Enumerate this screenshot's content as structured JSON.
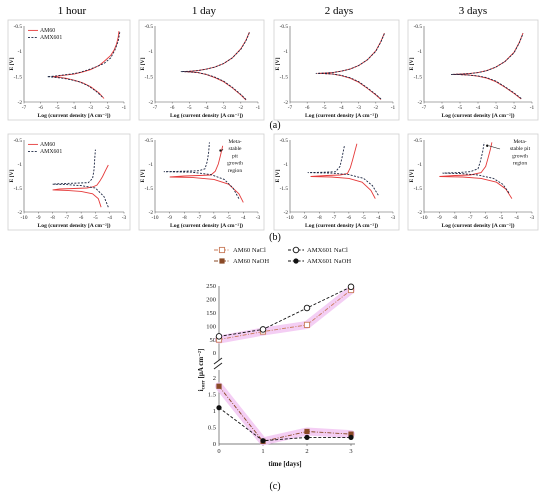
{
  "colors": {
    "am60": "#e53a3a",
    "amx601": "#1a2440",
    "am60_nacl": "#c87b5a",
    "am60_naoh": "#8a4a26",
    "amx601_nacl": "#111111",
    "amx601_naoh": "#111111",
    "panel_border": "#cfcfcf",
    "highlight": "#f2c6f2"
  },
  "figure": {
    "column_titles": [
      "1 hour",
      "1 day",
      "2 days",
      "3 days"
    ],
    "caption_a": "(a)",
    "caption_b": "(b)",
    "caption_c": "(c)"
  },
  "chart_data": [
    {
      "panel": "a-1",
      "type": "line",
      "xlabel": "Log (current density [A cm⁻²])",
      "ylabel": "E [V]",
      "xlim": [
        -7,
        -1
      ],
      "ylim": [
        -2,
        -0.5
      ],
      "xticks": [
        "-7",
        "-6",
        "-5",
        "-4",
        "-3",
        "-2",
        "-1"
      ],
      "yticks": [
        "-0.5",
        "-1",
        "-1.5",
        "-2"
      ],
      "legend": [
        "AM60",
        "AMX601"
      ],
      "series": [
        {
          "name": "AM60",
          "style": "solid",
          "x": [
            -2.2,
            -2.5,
            -3,
            -3.5,
            -4,
            -4.5,
            -5,
            -5.3,
            -5,
            -4.5,
            -4,
            -3.5,
            -3,
            -2.5,
            -2.2,
            -1.8,
            -1.6,
            -1.45,
            -1.35,
            -1.3
          ],
          "y": [
            -1.93,
            -1.82,
            -1.7,
            -1.62,
            -1.57,
            -1.53,
            -1.51,
            -1.5,
            -1.49,
            -1.47,
            -1.45,
            -1.41,
            -1.36,
            -1.28,
            -1.2,
            -1.08,
            -0.98,
            -0.86,
            -0.72,
            -0.6
          ]
        },
        {
          "name": "AMX601",
          "style": "dash",
          "x": [
            -2.3,
            -2.7,
            -3.2,
            -3.7,
            -4.2,
            -4.7,
            -5.2,
            -5.6,
            -5.2,
            -4.7,
            -4.2,
            -3.7,
            -3.2,
            -2.7,
            -2.2,
            -1.8,
            -1.55,
            -1.35,
            -1.25
          ],
          "y": [
            -1.9,
            -1.78,
            -1.67,
            -1.6,
            -1.56,
            -1.53,
            -1.51,
            -1.5,
            -1.49,
            -1.47,
            -1.45,
            -1.42,
            -1.37,
            -1.31,
            -1.24,
            -1.13,
            -0.98,
            -0.8,
            -0.62
          ]
        }
      ]
    },
    {
      "panel": "a-2",
      "type": "line",
      "xlabel": "Log (current density [A cm⁻²])",
      "ylabel": "E [V]",
      "xlim": [
        -7,
        -1
      ],
      "ylim": [
        -2,
        -0.5
      ],
      "xticks": [
        "-7",
        "-6",
        "-5",
        "-4",
        "-3",
        "-2",
        "-1"
      ],
      "yticks": [
        "-0.5",
        "-1",
        "-1.5",
        "-2"
      ],
      "series": [
        {
          "name": "AM60",
          "style": "solid",
          "x": [
            -1.7,
            -2,
            -2.5,
            -3,
            -3.5,
            -4,
            -4.5,
            -5,
            -5.3,
            -5,
            -4.5,
            -4,
            -3.5,
            -3,
            -2.5,
            -2,
            -1.7,
            -1.5
          ],
          "y": [
            -1.96,
            -1.86,
            -1.72,
            -1.6,
            -1.52,
            -1.46,
            -1.42,
            -1.405,
            -1.4,
            -1.395,
            -1.38,
            -1.35,
            -1.31,
            -1.24,
            -1.13,
            -0.95,
            -0.78,
            -0.62
          ]
        },
        {
          "name": "AMX601",
          "style": "dash",
          "x": [
            -1.7,
            -2,
            -2.5,
            -3,
            -3.5,
            -4,
            -4.5,
            -5,
            -5.5,
            -5,
            -4.5,
            -4,
            -3.5,
            -3,
            -2.5,
            -2,
            -1.7,
            -1.5
          ],
          "y": [
            -1.95,
            -1.85,
            -1.71,
            -1.59,
            -1.51,
            -1.455,
            -1.42,
            -1.405,
            -1.4,
            -1.395,
            -1.38,
            -1.35,
            -1.31,
            -1.24,
            -1.13,
            -0.96,
            -0.79,
            -0.63
          ]
        }
      ]
    },
    {
      "panel": "a-3",
      "type": "line",
      "xlabel": "Log (current density [A cm⁻²])",
      "ylabel": "E [V]",
      "xlim": [
        -7,
        -1
      ],
      "ylim": [
        -2,
        -0.5
      ],
      "xticks": [
        "-7",
        "-6",
        "-5",
        "-4",
        "-3",
        "-2",
        "-1"
      ],
      "yticks": [
        "-0.5",
        "-1",
        "-1.5",
        "-2"
      ],
      "series": [
        {
          "name": "AM60",
          "style": "solid",
          "x": [
            -1.7,
            -2,
            -2.5,
            -3,
            -3.5,
            -4,
            -4.5,
            -5,
            -5.4,
            -5,
            -4.5,
            -4,
            -3.5,
            -3,
            -2.5,
            -2,
            -1.7,
            -1.5
          ],
          "y": [
            -1.95,
            -1.86,
            -1.73,
            -1.61,
            -1.53,
            -1.48,
            -1.45,
            -1.44,
            -1.435,
            -1.43,
            -1.42,
            -1.39,
            -1.35,
            -1.28,
            -1.17,
            -0.99,
            -0.8,
            -0.64
          ]
        },
        {
          "name": "AMX601",
          "style": "dash",
          "x": [
            -1.7,
            -2,
            -2.5,
            -3,
            -3.5,
            -4,
            -4.5,
            -5,
            -5.5,
            -5,
            -4.5,
            -4,
            -3.5,
            -3,
            -2.5,
            -2,
            -1.7,
            -1.5
          ],
          "y": [
            -1.94,
            -1.85,
            -1.72,
            -1.6,
            -1.52,
            -1.475,
            -1.45,
            -1.44,
            -1.435,
            -1.43,
            -1.42,
            -1.39,
            -1.35,
            -1.28,
            -1.17,
            -1.0,
            -0.81,
            -0.65
          ]
        }
      ]
    },
    {
      "panel": "a-4",
      "type": "line",
      "xlabel": "Log (current density [A cm⁻²])",
      "ylabel": "E [V]",
      "xlim": [
        -7,
        -1
      ],
      "ylim": [
        -2,
        -0.5
      ],
      "xticks": [
        "-7",
        "-6",
        "-5",
        "-4",
        "-3",
        "-2",
        "-1"
      ],
      "yticks": [
        "-0.5",
        "-1",
        "-1.5",
        "-2"
      ],
      "series": [
        {
          "name": "AM60",
          "style": "solid",
          "x": [
            -1.6,
            -2,
            -2.5,
            -3,
            -3.5,
            -4,
            -4.5,
            -5,
            -5.4,
            -5,
            -4.5,
            -4,
            -3.5,
            -3,
            -2.5,
            -2,
            -1.7,
            -1.5
          ],
          "y": [
            -1.94,
            -1.83,
            -1.71,
            -1.6,
            -1.53,
            -1.49,
            -1.47,
            -1.46,
            -1.455,
            -1.45,
            -1.44,
            -1.42,
            -1.38,
            -1.31,
            -1.2,
            -1.02,
            -0.82,
            -0.64
          ]
        },
        {
          "name": "AMX601",
          "style": "dash",
          "x": [
            -1.6,
            -2,
            -2.5,
            -3,
            -3.5,
            -4,
            -4.5,
            -5,
            -5.5,
            -5,
            -4.5,
            -4,
            -3.5,
            -3,
            -2.5,
            -2,
            -1.7,
            -1.5
          ],
          "y": [
            -1.93,
            -1.82,
            -1.7,
            -1.59,
            -1.52,
            -1.485,
            -1.47,
            -1.46,
            -1.455,
            -1.45,
            -1.44,
            -1.42,
            -1.38,
            -1.31,
            -1.2,
            -1.03,
            -0.83,
            -0.65
          ]
        }
      ]
    },
    {
      "panel": "b-1",
      "type": "line",
      "xlabel": "Log (current density [A cm⁻²])",
      "ylabel": "E [V]",
      "xlim": [
        -10,
        -3
      ],
      "ylim": [
        -2,
        -0.5
      ],
      "xticks": [
        "-10",
        "-9",
        "-8",
        "-7",
        "-6",
        "-5",
        "-4",
        "-3"
      ],
      "yticks": [
        "-0.5",
        "-1",
        "-1.5",
        "-2"
      ],
      "legend": [
        "AM60",
        "AMX601"
      ],
      "series": [
        {
          "name": "AM60",
          "style": "solid",
          "x": [
            -4.6,
            -4.8,
            -5.2,
            -6,
            -7,
            -8,
            -7.5,
            -6.5,
            -5.6,
            -5.2,
            -4.9,
            -4.7,
            -4.5,
            -4.3,
            -4.1
          ],
          "y": [
            -1.9,
            -1.72,
            -1.62,
            -1.57,
            -1.55,
            -1.54,
            -1.52,
            -1.51,
            -1.5,
            -1.48,
            -1.44,
            -1.36,
            -1.26,
            -1.14,
            -1.02
          ]
        },
        {
          "name": "AMX601",
          "style": "dash",
          "x": [
            -4.1,
            -4.4,
            -5,
            -6,
            -7,
            -8,
            -7.5,
            -6.5,
            -5.5,
            -5.2,
            -5.1,
            -5.05,
            -5.0
          ],
          "y": [
            -1.9,
            -1.68,
            -1.5,
            -1.45,
            -1.43,
            -1.42,
            -1.41,
            -1.4,
            -1.39,
            -1.3,
            -1.12,
            -0.9,
            -0.7
          ]
        }
      ]
    },
    {
      "panel": "b-2",
      "type": "line",
      "xlabel": "Log (current density [A cm⁻²])",
      "ylabel": "E [V]",
      "xlim": [
        -10,
        -3
      ],
      "ylim": [
        -2,
        -0.5
      ],
      "xticks": [
        "-10",
        "-9",
        "-8",
        "-7",
        "-6",
        "-5",
        "-4",
        "-3"
      ],
      "yticks": [
        "-0.5",
        "-1",
        "-1.5",
        "-2"
      ],
      "annotations": [
        "Meta-",
        "stable",
        "pit",
        "growth",
        "region"
      ],
      "series": [
        {
          "name": "AM60",
          "style": "solid",
          "x": [
            -4.0,
            -4.3,
            -5,
            -6,
            -7.5,
            -9,
            -8,
            -7,
            -6.2,
            -5.9,
            -5.7,
            -5.55,
            -5.4
          ],
          "y": [
            -1.8,
            -1.62,
            -1.42,
            -1.32,
            -1.28,
            -1.27,
            -1.25,
            -1.24,
            -1.23,
            -1.15,
            -1.0,
            -0.82,
            -0.62
          ]
        },
        {
          "name": "AMX601",
          "style": "dash",
          "x": [
            -4.3,
            -4.7,
            -5.3,
            -6.2,
            -7.5,
            -9.4,
            -8,
            -7,
            -6.6,
            -6.45,
            -6.35,
            -6.3
          ],
          "y": [
            -1.72,
            -1.5,
            -1.32,
            -1.22,
            -1.17,
            -1.16,
            -1.15,
            -1.14,
            -1.1,
            -0.95,
            -0.75,
            -0.55
          ]
        }
      ]
    },
    {
      "panel": "b-3",
      "type": "line",
      "xlabel": "Log (current density [A cm⁻²])",
      "ylabel": "E [V]",
      "xlim": [
        -10,
        -3
      ],
      "ylim": [
        -2,
        -0.5
      ],
      "xticks": [
        "-10",
        "-9",
        "-8",
        "-7",
        "-6",
        "-5",
        "-4",
        "-3"
      ],
      "yticks": [
        "-0.5",
        "-1",
        "-1.5",
        "-2"
      ],
      "series": [
        {
          "name": "AM60",
          "style": "solid",
          "x": [
            -4.2,
            -4.5,
            -5.1,
            -6,
            -7.2,
            -8.6,
            -7.5,
            -6.6,
            -6.1,
            -5.9,
            -5.75,
            -5.6,
            -5.45
          ],
          "y": [
            -1.72,
            -1.55,
            -1.38,
            -1.3,
            -1.27,
            -1.26,
            -1.24,
            -1.23,
            -1.2,
            -1.08,
            -0.92,
            -0.75,
            -0.58
          ]
        },
        {
          "name": "AMX601",
          "style": "dash",
          "x": [
            -4.0,
            -4.4,
            -5,
            -6,
            -7.2,
            -8.8,
            -7.6,
            -6.9,
            -6.6,
            -6.45,
            -6.3
          ],
          "y": [
            -1.65,
            -1.45,
            -1.3,
            -1.22,
            -1.19,
            -1.18,
            -1.17,
            -1.16,
            -1.05,
            -0.85,
            -0.62
          ]
        }
      ]
    },
    {
      "panel": "b-4",
      "type": "line",
      "xlabel": "Log (current density [A cm⁻²])",
      "ylabel": "E [V]",
      "xlim": [
        -10,
        -3
      ],
      "ylim": [
        -2,
        -0.5
      ],
      "xticks": [
        "-10",
        "-9",
        "-8",
        "-7",
        "-6",
        "-5",
        "-4",
        "-3"
      ],
      "yticks": [
        "-0.5",
        "-1",
        "-1.5",
        "-2"
      ],
      "annotations": [
        "Meta-",
        "stable pit",
        "growth",
        "region"
      ],
      "series": [
        {
          "name": "AM60",
          "style": "solid",
          "x": [
            -4.3,
            -4.7,
            -5.3,
            -6.3,
            -7.5,
            -9,
            -8,
            -7,
            -6.3,
            -6.0,
            -5.85,
            -5.7,
            -5.6
          ],
          "y": [
            -1.72,
            -1.52,
            -1.38,
            -1.3,
            -1.27,
            -1.26,
            -1.24,
            -1.23,
            -1.18,
            -1.05,
            -0.88,
            -0.7,
            -0.55
          ]
        },
        {
          "name": "AMX601",
          "style": "dash",
          "x": [
            -4.5,
            -4.9,
            -5.5,
            -6.5,
            -7.6,
            -8.8,
            -7.8,
            -7,
            -6.5,
            -6.35,
            -6.2,
            -6.1
          ],
          "y": [
            -1.6,
            -1.42,
            -1.3,
            -1.23,
            -1.2,
            -1.19,
            -1.18,
            -1.16,
            -1.1,
            -0.95,
            -0.75,
            -0.55
          ]
        }
      ]
    },
    {
      "panel": "c",
      "type": "line",
      "xlabel": "time [days]",
      "ylabel_main": "i",
      "ylabel_sub": "corr",
      "ylabel_unit": " [µA cm⁻²]",
      "x": [
        0,
        1,
        2,
        3
      ],
      "xticks": [
        "0",
        "1",
        "2",
        "3"
      ],
      "upper_ylim": [
        0,
        250
      ],
      "upper_yticks": [
        "0",
        "50",
        "100",
        "150",
        "200",
        "250"
      ],
      "lower_ylim": [
        0,
        2
      ],
      "lower_yticks": [
        "0",
        "0.5",
        "1",
        "1.5",
        "2"
      ],
      "legend": [
        "AM60 NaCl",
        "AMX601 NaCl",
        "AM60 NaOH",
        "AMX601 NaOH"
      ],
      "series": [
        {
          "name": "AM60 NaCl",
          "segment": "upper",
          "marker": "open-square",
          "values": [
            50,
            80,
            105,
            235
          ]
        },
        {
          "name": "AMX601 NaCl",
          "segment": "upper",
          "marker": "open-circle",
          "values": [
            62,
            88,
            168,
            247
          ]
        },
        {
          "name": "AM60 NaOH",
          "segment": "lower",
          "marker": "filled-square",
          "values": [
            1.75,
            0.08,
            0.38,
            0.3
          ]
        },
        {
          "name": "AMX601 NaOH",
          "segment": "lower",
          "marker": "filled-circle",
          "values": [
            1.1,
            0.1,
            0.2,
            0.2
          ]
        }
      ]
    }
  ]
}
